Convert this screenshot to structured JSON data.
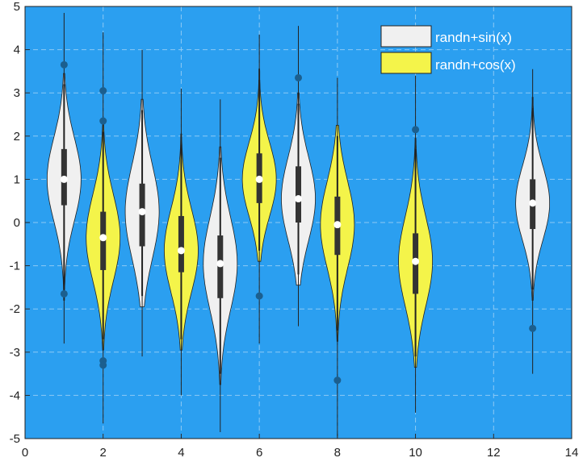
{
  "chart_data": {
    "type": "violin",
    "title": "",
    "xlabel": "",
    "ylabel": "",
    "xlim": [
      0,
      14
    ],
    "ylim": [
      -5,
      5
    ],
    "xticks": [
      "0",
      "2",
      "4",
      "6",
      "8",
      "10",
      "12",
      "14"
    ],
    "yticks": [
      "5",
      "4",
      "3",
      "2",
      "1",
      "0",
      "-1",
      "-2",
      "-3",
      "-4",
      "-5"
    ],
    "grid": true,
    "legend_position": "top-right",
    "background_color": "#2b9ff0",
    "series": [
      {
        "name": "randn+sin(x)",
        "color": "#f0f0f0",
        "legend_label": "randn+sin(x)"
      },
      {
        "name": "randn+cos(x)",
        "color": "#f4f44a",
        "legend_label": "randn+cos(x)"
      }
    ],
    "violins": [
      {
        "x": 1,
        "series": 0,
        "median": 1.0,
        "q1": 0.4,
        "q3": 1.7,
        "whisker_low": -1.55,
        "whisker_high": 3.2,
        "min": -2.8,
        "max": 4.85,
        "outliers": [
          3.65,
          -1.65
        ]
      },
      {
        "x": 2,
        "series": 1,
        "median": -0.35,
        "q1": -1.1,
        "q3": 0.25,
        "whisker_low": -2.7,
        "whisker_high": 2.1,
        "min": -4.65,
        "max": 4.4,
        "outliers": [
          3.05,
          2.35,
          -3.2,
          -3.3
        ]
      },
      {
        "x": 3,
        "series": 0,
        "median": 0.25,
        "q1": -0.55,
        "q3": 0.9,
        "whisker_low": -1.7,
        "whisker_high": 2.6,
        "min": -3.1,
        "max": 4.0,
        "outliers": []
      },
      {
        "x": 4,
        "series": 1,
        "median": -0.65,
        "q1": -1.15,
        "q3": 0.15,
        "whisker_low": -2.7,
        "whisker_high": 1.8,
        "min": -4.0,
        "max": 3.1,
        "outliers": []
      },
      {
        "x": 5,
        "series": 0,
        "median": -0.95,
        "q1": -1.75,
        "q3": -0.3,
        "whisker_low": -3.5,
        "whisker_high": 1.5,
        "min": -4.85,
        "max": 2.85,
        "outliers": []
      },
      {
        "x": 6,
        "series": 1,
        "median": 1.0,
        "q1": 0.45,
        "q3": 1.6,
        "whisker_low": -0.65,
        "whisker_high": 3.3,
        "min": -2.8,
        "max": 4.35,
        "outliers": [
          -1.7
        ]
      },
      {
        "x": 7,
        "series": 0,
        "median": 0.55,
        "q1": 0.0,
        "q3": 1.3,
        "whisker_low": -1.2,
        "whisker_high": 2.75,
        "min": -2.4,
        "max": 4.55,
        "outliers": [
          3.35
        ]
      },
      {
        "x": 8,
        "series": 1,
        "median": -0.05,
        "q1": -0.75,
        "q3": 0.6,
        "whisker_low": -2.5,
        "whisker_high": 2.0,
        "min": -4.95,
        "max": 3.35,
        "outliers": [
          -3.65
        ]
      },
      {
        "x": 10,
        "series": 1,
        "median": -0.9,
        "q1": -1.65,
        "q3": -0.25,
        "whisker_low": -3.1,
        "whisker_high": 1.7,
        "min": -4.4,
        "max": 3.4,
        "outliers": [
          2.15
        ]
      },
      {
        "x": 13,
        "series": 0,
        "median": 0.45,
        "q1": -0.15,
        "q3": 1.0,
        "whisker_low": -1.55,
        "whisker_high": 2.65,
        "min": -3.5,
        "max": 3.55,
        "outliers": [
          -2.45
        ]
      }
    ]
  }
}
